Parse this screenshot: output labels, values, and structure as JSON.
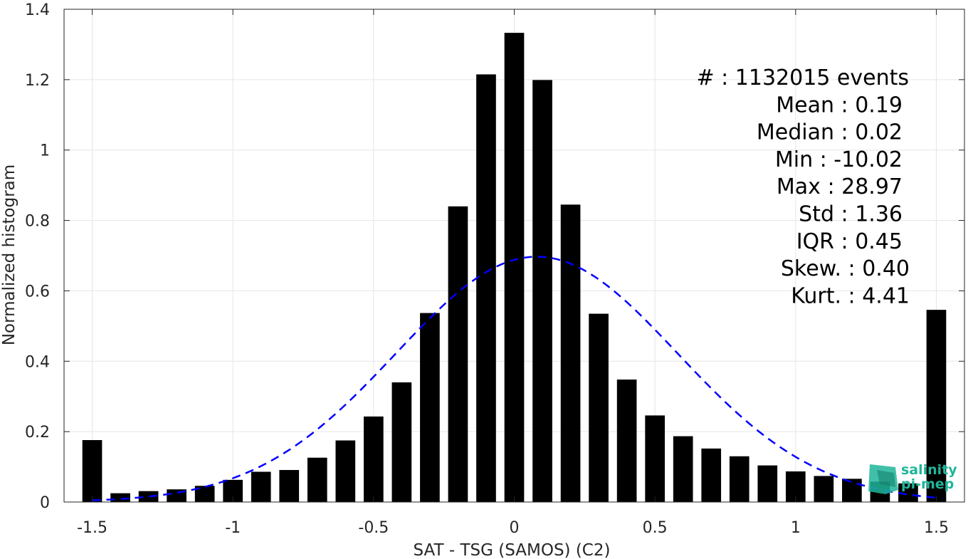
{
  "chart_data": {
    "type": "bar",
    "xlabel": "SAT - TSG (SAMOS) (C2)",
    "ylabel": "Normalized histogram",
    "xlim": [
      -1.6,
      1.6
    ],
    "ylim": [
      0,
      1.4
    ],
    "xticks": [
      -1.5,
      -1,
      -0.5,
      0,
      0.5,
      1,
      1.5
    ],
    "xtick_labels": [
      "-1.5",
      "-1",
      "-0.5",
      "0",
      "0.5",
      "1",
      "1.5"
    ],
    "yticks": [
      0,
      0.2,
      0.4,
      0.6,
      0.8,
      1,
      1.2,
      1.4
    ],
    "ytick_labels": [
      "0",
      "0.2",
      "0.4",
      "0.6",
      "0.8",
      "1",
      "1.2",
      "1.4"
    ],
    "grid": true,
    "bar_color": "#000000",
    "bar_width": 0.07,
    "x": [
      -1.5,
      -1.4,
      -1.3,
      -1.2,
      -1.1,
      -1.0,
      -0.9,
      -0.8,
      -0.7,
      -0.6,
      -0.5,
      -0.4,
      -0.3,
      -0.2,
      -0.1,
      0.0,
      0.1,
      0.2,
      0.3,
      0.4,
      0.5,
      0.6,
      0.7,
      0.8,
      0.9,
      1.0,
      1.1,
      1.2,
      1.3,
      1.4,
      1.5
    ],
    "values": [
      0.176,
      0.025,
      0.031,
      0.036,
      0.046,
      0.063,
      0.086,
      0.091,
      0.126,
      0.175,
      0.243,
      0.34,
      0.537,
      0.84,
      1.215,
      1.333,
      1.199,
      0.845,
      0.535,
      0.348,
      0.246,
      0.187,
      0.152,
      0.13,
      0.104,
      0.087,
      0.074,
      0.066,
      0.058,
      0.053,
      0.546
    ],
    "fit_curve": {
      "type": "gaussian",
      "color": "#0000ff",
      "style": "dashed",
      "x_range": [
        -1.5,
        1.5
      ],
      "peak": 0.697,
      "mean": 0.08,
      "sigma": 0.5
    },
    "stats": [
      {
        "label": "#  : 1132015 events"
      },
      {
        "label": "Mean : 0.19"
      },
      {
        "label": "Median : 0.02"
      },
      {
        "label": "Min : -10.02"
      },
      {
        "label": "Max : 28.97"
      },
      {
        "label": "Std : 1.36"
      },
      {
        "label": "IQR : 0.45"
      },
      {
        "label": "Skew. : 0.40"
      },
      {
        "label": "Kurt. : 4.41"
      }
    ]
  },
  "logo": {
    "line1": "salinity",
    "line2": "pi-mep",
    "color": "#1fb59a"
  }
}
